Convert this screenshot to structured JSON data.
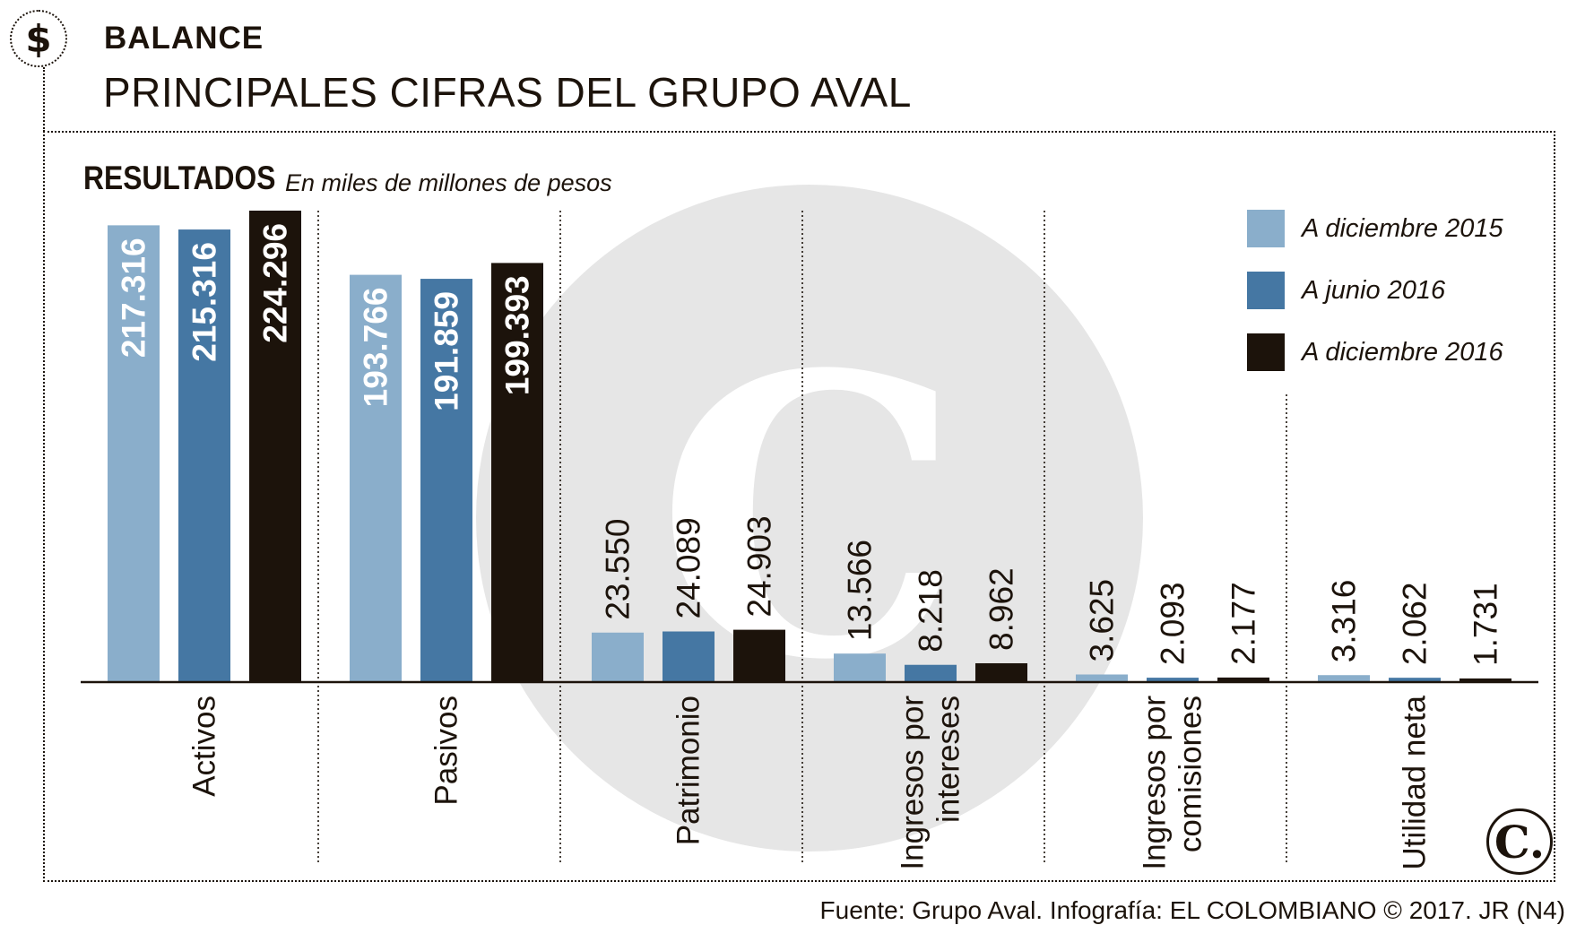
{
  "header": {
    "icon": "dollar-icon",
    "icon_glyph": "$",
    "section_label": "BALANCE",
    "title": "PRINCIPALES CIFRAS DEL GRUPO AVAL"
  },
  "subheading": {
    "title": "RESULTADOS",
    "note": "En miles de millones de pesos"
  },
  "colors": {
    "dic2015": "#8aaecb",
    "jun2016": "#4577a3",
    "dic2016": "#1c130b",
    "watermark": "#e6e6e6"
  },
  "chart_data": {
    "type": "bar",
    "title": "RESULTADOS",
    "subtitle": "En miles de millones de pesos",
    "categories": [
      "Activos",
      "Pasivos",
      "Patrimonio",
      "Ingresos por intereses",
      "Ingresos por comisiones",
      "Utilidad neta"
    ],
    "category_lines": [
      [
        "Activos"
      ],
      [
        "Pasivos"
      ],
      [
        "Patrimonio"
      ],
      [
        "Ingresos por",
        "intereses"
      ],
      [
        "Ingresos por",
        "comisiones"
      ],
      [
        "Utilidad neta"
      ]
    ],
    "series": [
      {
        "name": "A diciembre 2015",
        "values": [
          217316,
          193766,
          23550,
          13566,
          3625,
          3316
        ],
        "labels": [
          "217.316",
          "193.766",
          "23.550",
          "13.566",
          "3.625",
          "3.316"
        ]
      },
      {
        "name": "A junio 2016",
        "values": [
          215316,
          191859,
          24089,
          8218,
          2093,
          2062
        ],
        "labels": [
          "215.316",
          "191.859",
          "24.089",
          "8.218",
          "2.093",
          "2.062"
        ]
      },
      {
        "name": "A diciembre 2016",
        "values": [
          224296,
          199393,
          24903,
          8962,
          2177,
          1731
        ],
        "labels": [
          "224.296",
          "199.393",
          "24.903",
          "8.962",
          "2.177",
          "1.731"
        ]
      }
    ],
    "ylim": [
      0,
      224296
    ],
    "legend": "top-right",
    "grid": false
  },
  "watermark": {
    "glyph": "C"
  },
  "footer": {
    "source": "Fuente: Grupo Aval. Infografía: EL COLOMBIANO © 2017. JR (N4)",
    "logo_glyph": "C."
  }
}
